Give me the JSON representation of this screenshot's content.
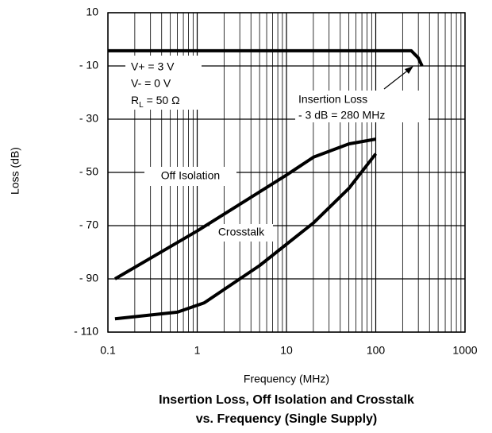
{
  "chart_data": {
    "type": "line",
    "title": [
      "Insertion Loss, Off Isolation and Crosstalk",
      "vs. Frequency (Single Supply)"
    ],
    "x_label": "Frequency (MHz)",
    "y_label": "Loss (dB)",
    "log_x": true,
    "grid": true,
    "xlim": [
      0.1,
      1000
    ],
    "xticks": [
      0.1,
      1,
      10,
      100,
      1000
    ],
    "ylim": [
      -110,
      10
    ],
    "yticks": [
      {
        "value": -110,
        "label": "- 110"
      },
      {
        "value": -90,
        "label": "- 90"
      },
      {
        "value": -70,
        "label": "- 70"
      },
      {
        "value": -50,
        "label": "- 50"
      },
      {
        "value": -30,
        "label": "- 30"
      },
      {
        "value": -10,
        "label": "- 10"
      },
      10
    ],
    "series": [
      {
        "name": "Insertion Loss",
        "color": "#000000",
        "x": [
          0.1,
          250,
          300,
          330
        ],
        "values": [
          -4.3,
          -4.3,
          -7,
          -10
        ]
      },
      {
        "name": "Off Isolation",
        "color": "#000000",
        "x": [
          0.12,
          1,
          10,
          20,
          50,
          100
        ],
        "values": [
          -90,
          -72,
          -51,
          -44.3,
          -39.3,
          -37.5
        ]
      },
      {
        "name": "Crosstalk",
        "color": "#000000",
        "x": [
          0.12,
          0.6,
          1.2,
          5,
          20,
          50,
          100
        ],
        "values": [
          -105,
          -102.5,
          -99,
          -85,
          -69,
          -56,
          -43
        ]
      }
    ],
    "conditions": [
      "V+ = 3 V",
      "V- = 0 V",
      {
        "main": "R",
        "sub": "L",
        "rest": " = 50 Ω"
      }
    ],
    "insertion_note": [
      "Insertion Loss",
      "- 3 dB = 280 MHz"
    ]
  }
}
